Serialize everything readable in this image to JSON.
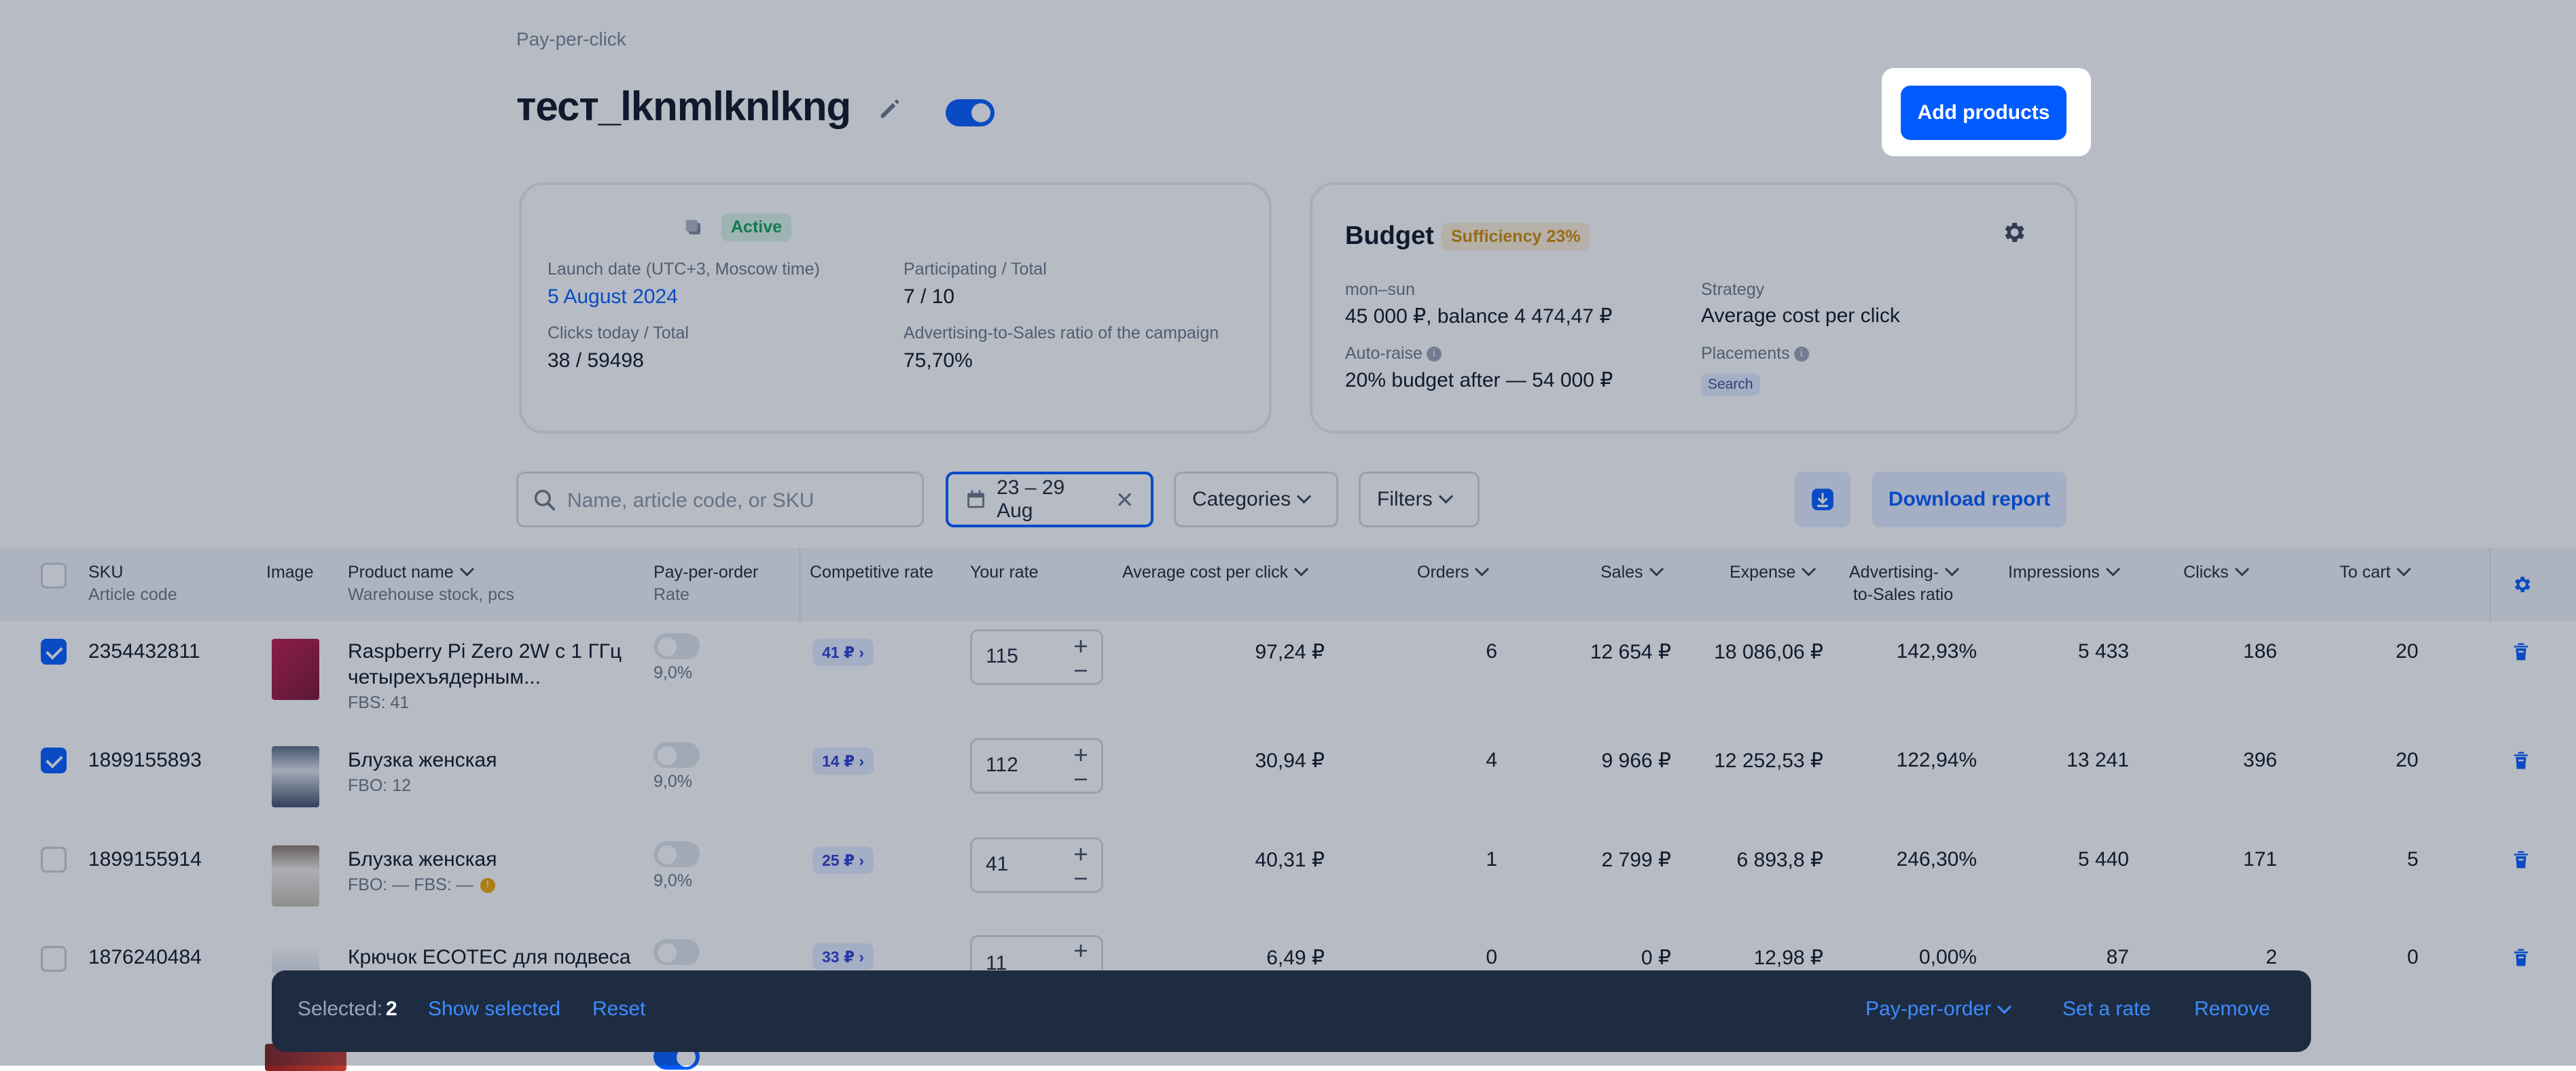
{
  "breadcrumb": "Pay-per-click",
  "campaign": {
    "title": "тест_lknmlknlkng",
    "add_products_label": "Add products"
  },
  "info_card": {
    "status": "Active",
    "launch_label": "Launch date (UTC+3, Moscow time)",
    "launch_value": "5 August 2024",
    "participating_label": "Participating / Total",
    "participating_value": "7 / 10",
    "clicks_label": "Clicks today / Total",
    "clicks_value": "38 / 59498",
    "ratio_label": "Advertising-to-Sales ratio of the campaign",
    "ratio_value": "75,70%"
  },
  "budget_card": {
    "title": "Budget",
    "sufficiency": "Sufficiency 23%",
    "period_label": "mon–sun",
    "period_value": "45 000 ₽, balance 4 474,47 ₽",
    "autoraise_label": "Auto-raise",
    "autoraise_value": "20% budget after — 54 000 ₽",
    "strategy_label": "Strategy",
    "strategy_value": "Average cost per click",
    "placements_label": "Placements",
    "placement_tag": "Search"
  },
  "toolbar": {
    "search_placeholder": "Name, article code, or SKU",
    "date_range": "23 – 29 Aug",
    "categories_label": "Categories",
    "filters_label": "Filters",
    "download_label": "Download report"
  },
  "columns": {
    "sku": "SKU",
    "sku_sub": "Article code",
    "image": "Image",
    "product": "Product name",
    "product_sub": "Warehouse stock, pcs",
    "ppo": "Pay-per-order",
    "ppo_sub": "Rate",
    "competitive": "Competitive rate",
    "your_rate": "Your rate",
    "avg_cpc": "Average cost per click",
    "orders": "Orders",
    "sales": "Sales",
    "expense": "Expense",
    "ads_ratio_1": "Advertising-",
    "ads_ratio_2": "to-Sales ratio",
    "impressions": "Impressions",
    "clicks": "Clicks",
    "to_cart": "To cart"
  },
  "rows": [
    {
      "selected": true,
      "sku": "2354432811",
      "name1": "Raspberry Pi Zero 2W с 1 ГГц",
      "name2": "четырехъядерным...",
      "stock": "FBS: 41",
      "ppo_rate": "9,0%",
      "comp": "41 ₽",
      "rate": "115",
      "avg_cpc": "97,24 ₽",
      "orders": "6",
      "sales": "12 654 ₽",
      "expense": "18 086,06 ₽",
      "ratio": "142,93%",
      "impressions": "5 433",
      "clicks": "186",
      "to_cart": "20"
    },
    {
      "selected": true,
      "sku": "1899155893",
      "name1": "Блузка женская",
      "name2": "",
      "stock": "FBO: 12",
      "ppo_rate": "9,0%",
      "comp": "14 ₽",
      "rate": "112",
      "avg_cpc": "30,94 ₽",
      "orders": "4",
      "sales": "9 966 ₽",
      "expense": "12 252,53 ₽",
      "ratio": "122,94%",
      "impressions": "13 241",
      "clicks": "396",
      "to_cart": "20"
    },
    {
      "selected": false,
      "sku": "1899155914",
      "name1": "Блузка женская",
      "name2": "",
      "stock": "FBO: —   FBS: —",
      "ppo_rate": "9,0%",
      "comp": "25 ₽",
      "rate": "41",
      "avg_cpc": "40,31 ₽",
      "orders": "1",
      "sales": "2 799 ₽",
      "expense": "6 893,8 ₽",
      "ratio": "246,30%",
      "impressions": "5 440",
      "clicks": "171",
      "to_cart": "5"
    },
    {
      "selected": false,
      "sku": "1876240484",
      "name1": "Крючок ECOTEC для подвеса",
      "name2": "",
      "stock": "",
      "ppo_rate": "",
      "comp": "33 ₽",
      "rate": "11",
      "avg_cpc": "6,49 ₽",
      "orders": "0",
      "sales": "0 ₽",
      "expense": "12,98 ₽",
      "ratio": "0,00%",
      "impressions": "87",
      "clicks": "2",
      "to_cart": "0"
    }
  ],
  "selection_bar": {
    "selected_label": "Selected:",
    "selected_count": "2",
    "show_selected": "Show selected",
    "reset": "Reset",
    "ppo": "Pay-per-order",
    "set_rate": "Set a rate",
    "remove": "Remove"
  },
  "colors": {
    "accent": "#005bff",
    "overlay": "#1c2c48",
    "bar": "#1e2c42",
    "active": "#10a050"
  }
}
